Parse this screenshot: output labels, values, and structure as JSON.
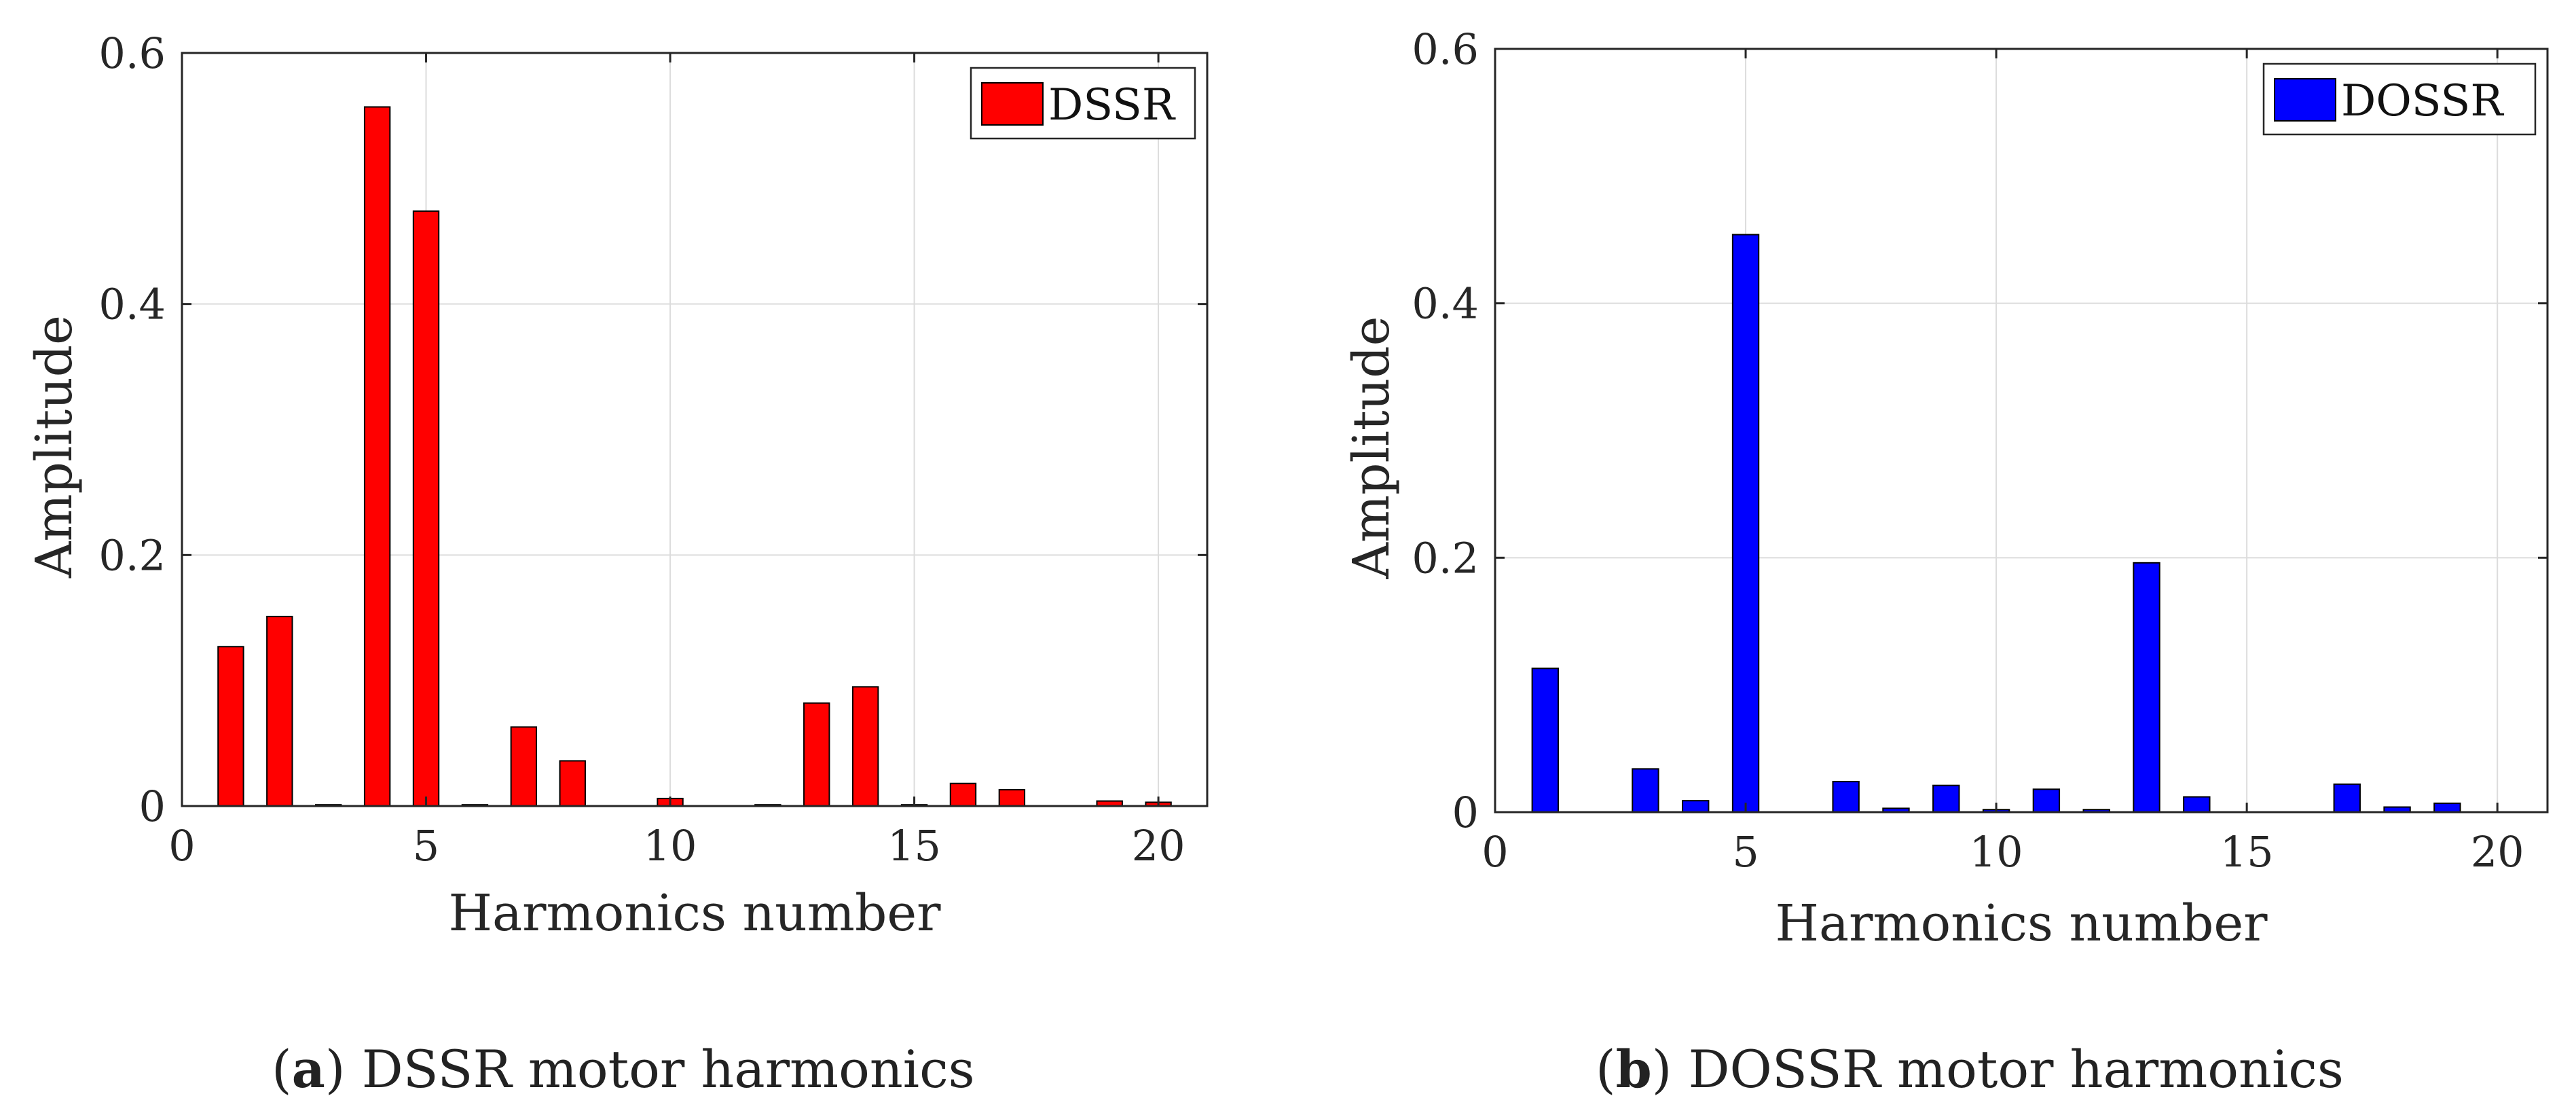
{
  "chart_data": [
    {
      "type": "bar",
      "panel": "a",
      "xlabel": "Harmonics number",
      "ylabel": "Amplitude",
      "xlim": [
        0,
        21
      ],
      "ylim": [
        0,
        0.6
      ],
      "xticks": [
        0,
        5,
        10,
        15,
        20
      ],
      "yticks": [
        0,
        0.2,
        0.4,
        0.6
      ],
      "ytick_labels": [
        "0",
        "0.2",
        "0.4",
        "0.6"
      ],
      "grid": true,
      "legend_position": "top-right",
      "series": [
        {
          "name": "DSSR",
          "color": "#ff0000",
          "x": [
            1,
            2,
            3,
            4,
            5,
            6,
            7,
            8,
            9,
            10,
            11,
            12,
            13,
            14,
            15,
            16,
            17,
            18,
            19,
            20
          ],
          "values": [
            0.127,
            0.151,
            0.001,
            0.557,
            0.474,
            0.001,
            0.063,
            0.036,
            0.0,
            0.006,
            0.0,
            0.001,
            0.082,
            0.095,
            0.001,
            0.018,
            0.013,
            0.0,
            0.004,
            0.003
          ]
        }
      ],
      "caption_letter": "a",
      "caption_text": ") DSSR motor harmonics"
    },
    {
      "type": "bar",
      "panel": "b",
      "xlabel": "Harmonics number",
      "ylabel": "Amplitude",
      "xlim": [
        0,
        21
      ],
      "ylim": [
        0,
        0.6
      ],
      "xticks": [
        0,
        5,
        10,
        15,
        20
      ],
      "yticks": [
        0,
        0.2,
        0.4,
        0.6
      ],
      "ytick_labels": [
        "0",
        "0.2",
        "0.4",
        "0.6"
      ],
      "grid": true,
      "legend_position": "top-right",
      "series": [
        {
          "name": "DOSSR",
          "color": "#0000ff",
          "x": [
            1,
            2,
            3,
            4,
            5,
            6,
            7,
            8,
            9,
            10,
            11,
            12,
            13,
            14,
            15,
            16,
            17,
            18,
            19,
            20
          ],
          "values": [
            0.113,
            0.0,
            0.034,
            0.009,
            0.454,
            0.0,
            0.024,
            0.003,
            0.021,
            0.002,
            0.018,
            0.002,
            0.196,
            0.012,
            0.0,
            0.0,
            0.022,
            0.004,
            0.007,
            0.0
          ]
        }
      ],
      "caption_letter": "b",
      "caption_text": ") DOSSR motor harmonics"
    }
  ]
}
